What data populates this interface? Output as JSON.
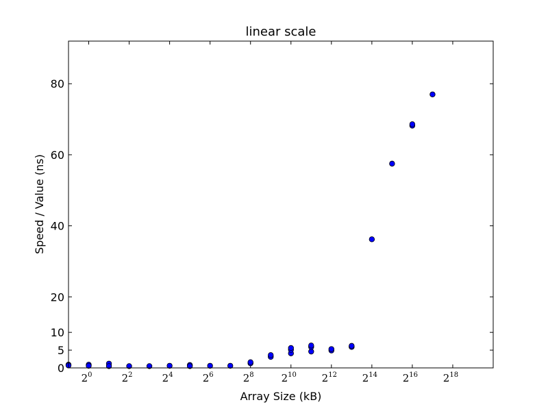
{
  "chart_data": {
    "type": "scatter",
    "title": "linear scale",
    "xlabel": "Array Size (kB)",
    "ylabel": "Speed / Value (ns)",
    "x_scale": "log2",
    "xlim": [
      -1,
      20
    ],
    "ylim": [
      0,
      92
    ],
    "x_ticks": [
      {
        "base": "2",
        "exp": "0",
        "value": 0
      },
      {
        "base": "2",
        "exp": "2",
        "value": 2
      },
      {
        "base": "2",
        "exp": "4",
        "value": 4
      },
      {
        "base": "2",
        "exp": "6",
        "value": 6
      },
      {
        "base": "2",
        "exp": "8",
        "value": 8
      },
      {
        "base": "2",
        "exp": "10",
        "value": 10
      },
      {
        "base": "2",
        "exp": "12",
        "value": 12
      },
      {
        "base": "2",
        "exp": "14",
        "value": 14
      },
      {
        "base": "2",
        "exp": "16",
        "value": 16
      },
      {
        "base": "2",
        "exp": "18",
        "value": 18
      }
    ],
    "y_ticks": [
      0,
      5,
      10,
      20,
      40,
      60,
      80
    ],
    "y_tick_labels": [
      "0",
      "5",
      "10",
      "20",
      "40",
      "60",
      "80"
    ],
    "grid": false,
    "marker_color": "#0000ff",
    "series": [
      {
        "x_log2": [
          -1,
          -1,
          0,
          0,
          1,
          1,
          2,
          3,
          4,
          5,
          5,
          6,
          7,
          8,
          8,
          9,
          9,
          10,
          10,
          10,
          11,
          11,
          11,
          12,
          12,
          13,
          13,
          14,
          15,
          16,
          16,
          17
        ],
        "y": [
          0.9,
          0.7,
          0.9,
          0.6,
          1.2,
          0.5,
          0.5,
          0.5,
          0.6,
          0.8,
          0.5,
          0.6,
          0.6,
          1.3,
          1.6,
          3.1,
          3.6,
          4.1,
          5.1,
          5.6,
          4.6,
          5.9,
          6.3,
          4.9,
          5.3,
          5.9,
          6.2,
          36.2,
          57.5,
          68.2,
          68.6,
          77.0
        ]
      }
    ]
  }
}
